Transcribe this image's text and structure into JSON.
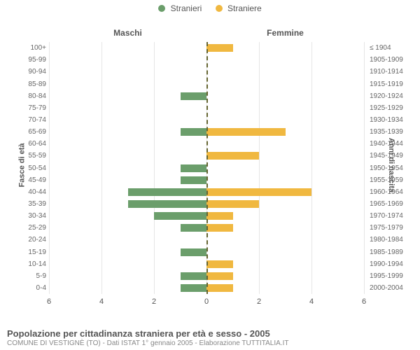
{
  "chart": {
    "type": "population-pyramid",
    "background_color": "#ffffff",
    "grid_color": "#e6e6e6",
    "center_line_color": "#666633",
    "label_color": "#666666",
    "legend": {
      "items": [
        {
          "label": "Stranieri",
          "color": "#6b9e6b"
        },
        {
          "label": "Straniere",
          "color": "#f0b840"
        }
      ]
    },
    "column_titles": {
      "left": "Maschi",
      "right": "Femmine"
    },
    "axis_title_left": "Fasce di età",
    "axis_title_right": "Anni di nascita",
    "x": {
      "max": 6,
      "ticks": [
        6,
        4,
        2,
        0,
        2,
        4,
        6
      ]
    },
    "age_bands": [
      {
        "age": "100+",
        "birth": "≤ 1904",
        "m": 0,
        "f": 1
      },
      {
        "age": "95-99",
        "birth": "1905-1909",
        "m": 0,
        "f": 0
      },
      {
        "age": "90-94",
        "birth": "1910-1914",
        "m": 0,
        "f": 0
      },
      {
        "age": "85-89",
        "birth": "1915-1919",
        "m": 0,
        "f": 0
      },
      {
        "age": "80-84",
        "birth": "1920-1924",
        "m": 1,
        "f": 0
      },
      {
        "age": "75-79",
        "birth": "1925-1929",
        "m": 0,
        "f": 0
      },
      {
        "age": "70-74",
        "birth": "1930-1934",
        "m": 0,
        "f": 0
      },
      {
        "age": "65-69",
        "birth": "1935-1939",
        "m": 1,
        "f": 3
      },
      {
        "age": "60-64",
        "birth": "1940-1944",
        "m": 0,
        "f": 0
      },
      {
        "age": "55-59",
        "birth": "1945-1949",
        "m": 0,
        "f": 2
      },
      {
        "age": "50-54",
        "birth": "1950-1954",
        "m": 1,
        "f": 0
      },
      {
        "age": "45-49",
        "birth": "1955-1959",
        "m": 1,
        "f": 0
      },
      {
        "age": "40-44",
        "birth": "1960-1964",
        "m": 3,
        "f": 4
      },
      {
        "age": "35-39",
        "birth": "1965-1969",
        "m": 3,
        "f": 2
      },
      {
        "age": "30-34",
        "birth": "1970-1974",
        "m": 2,
        "f": 1
      },
      {
        "age": "25-29",
        "birth": "1975-1979",
        "m": 1,
        "f": 1
      },
      {
        "age": "20-24",
        "birth": "1980-1984",
        "m": 0,
        "f": 0
      },
      {
        "age": "15-19",
        "birth": "1985-1989",
        "m": 1,
        "f": 0
      },
      {
        "age": "10-14",
        "birth": "1990-1994",
        "m": 0,
        "f": 1
      },
      {
        "age": "5-9",
        "birth": "1995-1999",
        "m": 1,
        "f": 1
      },
      {
        "age": "0-4",
        "birth": "2000-2004",
        "m": 1,
        "f": 1
      }
    ],
    "bar_colors": {
      "m": "#6b9e6b",
      "f": "#f0b840"
    },
    "footer_title": "Popolazione per cittadinanza straniera per età e sesso - 2005",
    "footer_sub": "COMUNE DI VESTIGNÈ (TO) - Dati ISTAT 1° gennaio 2005 - Elaborazione TUTTITALIA.IT"
  }
}
